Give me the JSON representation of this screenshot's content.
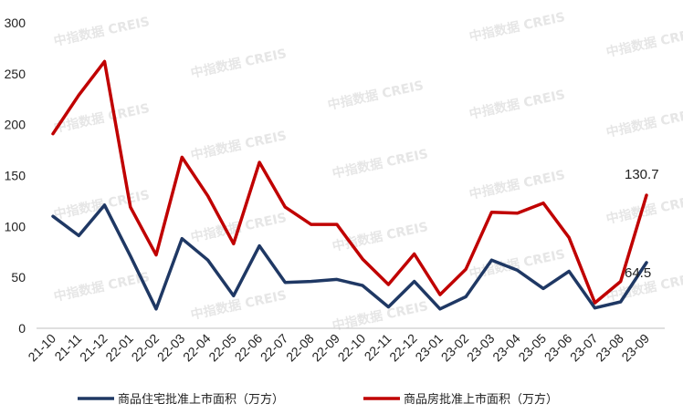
{
  "watermark": "中指数据 CREIS",
  "chart_data": {
    "type": "line",
    "categories": [
      "21-10",
      "21-11",
      "21-12",
      "22-01",
      "22-02",
      "22-03",
      "22-04",
      "22-05",
      "22-06",
      "22-07",
      "22-08",
      "22-09",
      "22-10",
      "22-11",
      "22-12",
      "23-01",
      "23-02",
      "23-03",
      "23-04",
      "23-05",
      "23-06",
      "23-07",
      "23-08",
      "23-09"
    ],
    "ylim": [
      0,
      300
    ],
    "yticks": [
      "0",
      "50",
      "100",
      "150",
      "200",
      "250",
      "300"
    ],
    "grid": false,
    "legend_position": "bottom",
    "series": [
      {
        "name": "商品住宅批准上市面积（万方）",
        "color": "#1f3864",
        "values": [
          110,
          91,
          121,
          71,
          19,
          88,
          67,
          32,
          81,
          45,
          46,
          48,
          42,
          21,
          46,
          19,
          31,
          67,
          57,
          39,
          56,
          20,
          26,
          64.5
        ],
        "end_label": "64.5"
      },
      {
        "name": "商品房批准上市面积（万方）",
        "color": "#c00000",
        "values": [
          191,
          229,
          262,
          119,
          72,
          168,
          130,
          83,
          163,
          119,
          102,
          102,
          68,
          43,
          73,
          33,
          58,
          114,
          113,
          123,
          89,
          25,
          46,
          130.7
        ],
        "end_label": "130.7"
      }
    ]
  }
}
